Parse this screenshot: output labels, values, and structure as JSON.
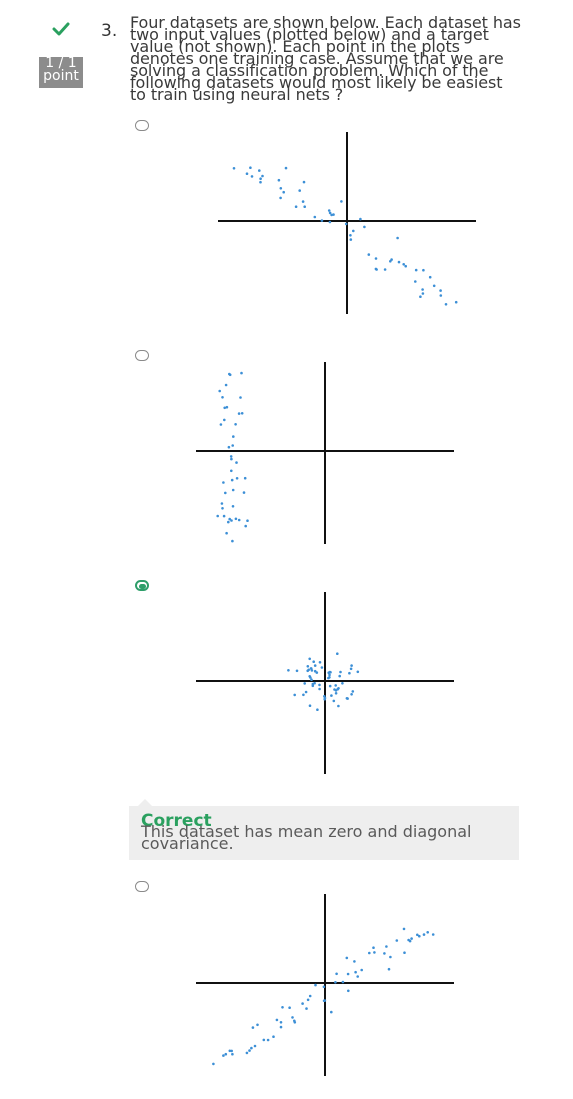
{
  "question": {
    "status_icon": "check-icon",
    "score": "1 / 1",
    "score_unit": "point",
    "number": "3.",
    "text": "Four datasets are shown below. Each dataset has two input values (plotted below) and a target value (not shown). Each point in the plots denotes one training case. Assume that we are solving a classification problem. Which of the following datasets would most likely be easiest to train using neural nets ?"
  },
  "options": [
    {
      "selected": false,
      "plot": "negative-correlation-scatter"
    },
    {
      "selected": false,
      "plot": "narrow-vertical-cluster-left-scatter"
    },
    {
      "selected": true,
      "plot": "centered-isotropic-cluster-scatter"
    },
    {
      "selected": false,
      "plot": "positive-correlation-scatter"
    }
  ],
  "feedback": {
    "title": "Correct",
    "text": "This dataset has mean zero and diagonal covariance."
  },
  "colors": {
    "correct_green": "#2aa05f",
    "radio_selected": "#2e9e6a",
    "point_blue": "#3c8fd6",
    "badge_gray": "#8c8c8c",
    "feedback_bg": "#eeeeee"
  }
}
